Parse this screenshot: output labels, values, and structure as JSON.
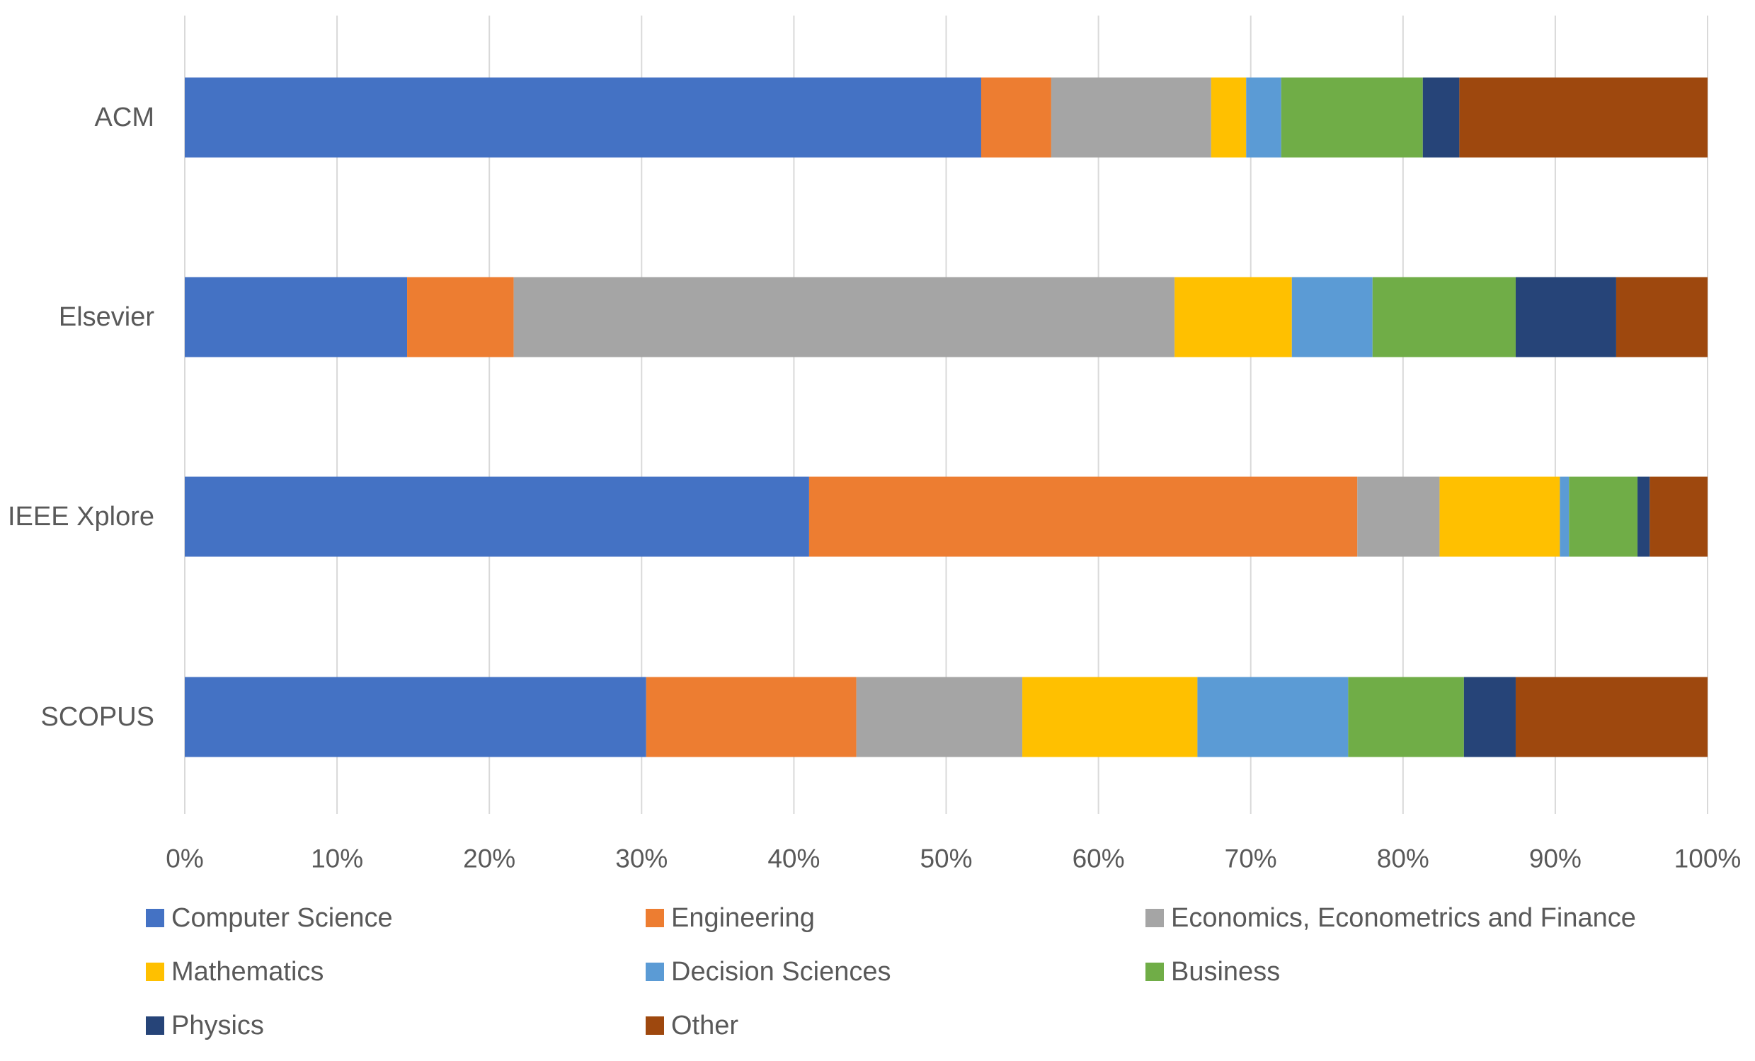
{
  "chart_data": {
    "type": "bar",
    "orientation": "horizontal",
    "stacked": "percent",
    "title": "",
    "xlabel": "",
    "ylabel": "",
    "xlim": [
      0,
      100
    ],
    "grid": true,
    "legend_position": "bottom",
    "categories": [
      "ACM",
      "Elsevier",
      "IEEE Xplore",
      "SCOPUS"
    ],
    "x_ticks": [
      "0%",
      "10%",
      "20%",
      "30%",
      "40%",
      "50%",
      "60%",
      "70%",
      "80%",
      "90%",
      "100%"
    ],
    "series": [
      {
        "name": "Computer Science",
        "color": "#4472C4",
        "values": [
          52.3,
          14.6,
          41.0,
          30.3
        ]
      },
      {
        "name": "Engineering",
        "color": "#ED7D31",
        "values": [
          4.6,
          7.0,
          36.0,
          13.8
        ]
      },
      {
        "name": "Economics, Econometrics and Finance",
        "color": "#A5A5A5",
        "values": [
          10.5,
          43.4,
          5.4,
          10.9
        ]
      },
      {
        "name": "Mathematics",
        "color": "#FFC000",
        "values": [
          2.3,
          7.7,
          7.9,
          11.5
        ]
      },
      {
        "name": "Decision Sciences",
        "color": "#5B9BD5",
        "values": [
          2.3,
          5.3,
          0.6,
          9.9
        ]
      },
      {
        "name": "Business",
        "color": "#70AD47",
        "values": [
          9.3,
          9.4,
          4.5,
          7.6
        ]
      },
      {
        "name": "Physics",
        "color": "#264478",
        "values": [
          2.4,
          6.6,
          0.8,
          3.4
        ]
      },
      {
        "name": "Other",
        "color": "#9E480E",
        "values": [
          16.3,
          6.0,
          3.8,
          12.6
        ]
      }
    ]
  },
  "colors": {
    "gridline": "#D9D9D9",
    "axis_text": "#595959",
    "background": "#FFFFFF"
  }
}
